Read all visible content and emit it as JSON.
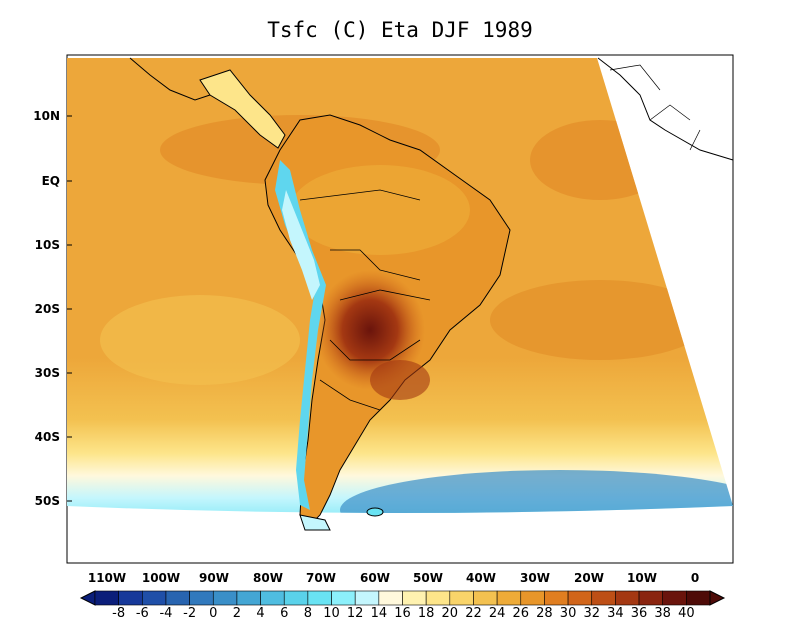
{
  "title": "Tsfc (C) Eta DJF 1989",
  "lat_labels": [
    "10N",
    "EQ",
    "10S",
    "20S",
    "30S",
    "40S",
    "50S"
  ],
  "lon_labels": [
    "110W",
    "100W",
    "90W",
    "80W",
    "70W",
    "60W",
    "50W",
    "40W",
    "30W",
    "20W",
    "10W",
    "0"
  ],
  "colorbar": {
    "labels": [
      "-8",
      "-6",
      "-4",
      "-2",
      "0",
      "2",
      "4",
      "6",
      "8",
      "10",
      "12",
      "14",
      "16",
      "18",
      "20",
      "22",
      "24",
      "26",
      "28",
      "30",
      "32",
      "34",
      "36",
      "38",
      "40"
    ],
    "colors": [
      "#0b1e7a",
      "#17399a",
      "#1f4fa8",
      "#2864b0",
      "#3179bd",
      "#3a8fc8",
      "#44a6d4",
      "#4fbde0",
      "#5ad2ea",
      "#69e3f3",
      "#8cf0fb",
      "#c4f6fd",
      "#fff8dc",
      "#fff2b0",
      "#fde58a",
      "#f9d46a",
      "#f3c150",
      "#eeab38",
      "#e8962a",
      "#e07e20",
      "#d1651a",
      "#bd4f16",
      "#a43812",
      "#8a240f",
      "#6a140c",
      "#4e0b08"
    ]
  },
  "colors": {
    "ocean_warm": "#eea638",
    "ocean_warmer": "#e3902a",
    "land_hot": "#8a2a10",
    "andes_cold": "#5fd6ee",
    "southern_cold": "#4fc6e6"
  }
}
